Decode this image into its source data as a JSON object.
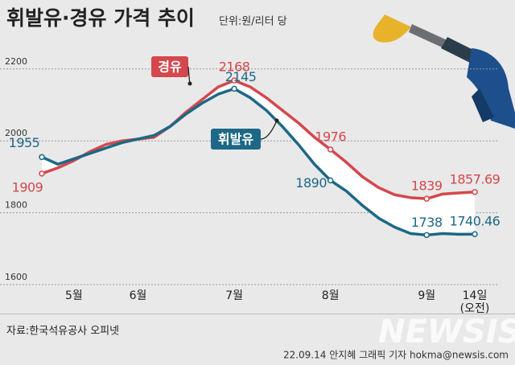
{
  "chart_data": {
    "type": "line",
    "title": "휘발유·경유 가격 추이",
    "subtitle": "단위:원/리터 당",
    "categories": [
      null,
      null,
      "5월",
      null,
      null,
      null,
      "6월",
      null,
      null,
      null,
      null,
      null,
      "7월",
      null,
      null,
      null,
      null,
      null,
      "8월",
      null,
      null,
      null,
      null,
      null,
      "9월",
      null,
      null,
      "14일\n(오전)"
    ],
    "series": [
      {
        "name": "경유",
        "color": "#d4474c",
        "values": [
          1909,
          1925,
          1945,
          1970,
          1990,
          2000,
          2005,
          2010,
          2040,
          2080,
          2115,
          2150,
          2168,
          2150,
          2120,
          2085,
          2050,
          2010,
          1976,
          1940,
          1900,
          1870,
          1850,
          1842,
          1839,
          1852,
          1855,
          1857.69
        ],
        "value_labels": [
          "1909",
          null,
          null,
          null,
          null,
          null,
          null,
          null,
          null,
          null,
          null,
          null,
          "2168",
          null,
          null,
          null,
          null,
          null,
          "1976",
          null,
          null,
          null,
          null,
          null,
          "1839",
          null,
          null,
          "1857.69"
        ]
      },
      {
        "name": "휘발유",
        "color": "#1d6886",
        "values": [
          1955,
          1935,
          1950,
          1965,
          1980,
          1995,
          2005,
          2015,
          2040,
          2075,
          2105,
          2130,
          2145,
          2120,
          2085,
          2040,
          1990,
          1935,
          1890,
          1860,
          1820,
          1785,
          1760,
          1742,
          1738,
          1742,
          1740,
          1740.46
        ],
        "value_labels": [
          "1955",
          null,
          null,
          null,
          null,
          null,
          null,
          null,
          null,
          null,
          null,
          null,
          "2145",
          null,
          null,
          null,
          null,
          null,
          "1890",
          null,
          null,
          null,
          null,
          null,
          "1738",
          null,
          null,
          "1740.46"
        ]
      }
    ],
    "ylim": [
      1600,
      2250
    ],
    "yticks": [
      1600,
      1800,
      2000,
      2200
    ],
    "grid": true,
    "source": "자료:한국석유공사 오피넷",
    "credit": "22.09.14 안지혜 그래픽 기자 hokma@newsis.com",
    "watermark": "NEWSIS"
  }
}
